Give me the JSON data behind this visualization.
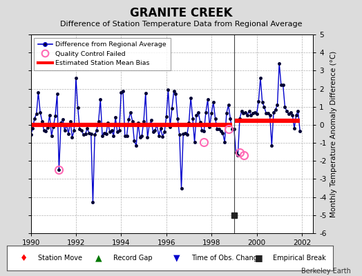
{
  "title": "GRANITE CREEK",
  "subtitle": "Difference of Station Temperature Data from Regional Average",
  "ylabel_right": "Monthly Temperature Anomaly Difference (°C)",
  "credit": "Berkeley Earth",
  "xlim": [
    1990,
    2002.5
  ],
  "ylim": [
    -6,
    5
  ],
  "yticks": [
    -6,
    -5,
    -4,
    -3,
    -2,
    -1,
    0,
    1,
    2,
    3,
    4,
    5
  ],
  "xticks": [
    1990,
    1992,
    1994,
    1996,
    1998,
    2000,
    2002
  ],
  "background_color": "#dcdcdc",
  "plot_bg_color": "#ffffff",
  "grid_color": "#b0b0b0",
  "line_color": "#0000cc",
  "line_width": 1.0,
  "marker_color": "#000033",
  "marker_size": 3.0,
  "bias_line_before": 0.0,
  "bias_line_after": 0.22,
  "break_year": 1999.0,
  "vertical_line_x": 1999.0,
  "empirical_break_x": 1999.0,
  "empirical_break_y": -5.0,
  "qc_failed_points": [
    [
      1991.25,
      -2.5
    ],
    [
      1997.67,
      -0.95
    ],
    [
      1998.75,
      -0.25
    ],
    [
      1999.25,
      -1.55
    ],
    [
      1999.42,
      -1.7
    ]
  ],
  "time_series_x": [
    1990.0,
    1990.083,
    1990.167,
    1990.25,
    1990.333,
    1990.417,
    1990.5,
    1990.583,
    1990.667,
    1990.75,
    1990.833,
    1990.917,
    1991.0,
    1991.083,
    1991.167,
    1991.25,
    1991.333,
    1991.417,
    1991.5,
    1991.583,
    1991.667,
    1991.75,
    1991.833,
    1991.917,
    1992.0,
    1992.083,
    1992.167,
    1992.25,
    1992.333,
    1992.417,
    1992.5,
    1992.583,
    1992.667,
    1992.75,
    1992.833,
    1992.917,
    1993.0,
    1993.083,
    1993.167,
    1993.25,
    1993.333,
    1993.417,
    1993.5,
    1993.583,
    1993.667,
    1993.75,
    1993.833,
    1993.917,
    1994.0,
    1994.083,
    1994.167,
    1994.25,
    1994.333,
    1994.417,
    1994.5,
    1994.583,
    1994.667,
    1994.75,
    1994.833,
    1994.917,
    1995.0,
    1995.083,
    1995.167,
    1995.25,
    1995.333,
    1995.417,
    1995.5,
    1995.583,
    1995.667,
    1995.75,
    1995.833,
    1995.917,
    1996.0,
    1996.083,
    1996.167,
    1996.25,
    1996.333,
    1996.417,
    1996.5,
    1996.583,
    1996.667,
    1996.75,
    1996.833,
    1996.917,
    1997.0,
    1997.083,
    1997.167,
    1997.25,
    1997.333,
    1997.417,
    1997.5,
    1997.583,
    1997.667,
    1997.75,
    1997.833,
    1997.917,
    1998.0,
    1998.083,
    1998.167,
    1998.25,
    1998.333,
    1998.417,
    1998.5,
    1998.583,
    1998.667,
    1998.75,
    1998.833,
    1998.917,
    1999.0,
    1999.083,
    1999.167,
    1999.25,
    1999.333,
    1999.417,
    1999.5,
    1999.583,
    1999.667,
    1999.75,
    1999.833,
    1999.917,
    2000.0,
    2000.083,
    2000.167,
    2000.25,
    2000.333,
    2000.417,
    2000.5,
    2000.583,
    2000.667,
    2000.75,
    2000.833,
    2000.917,
    2001.0,
    2001.083,
    2001.167,
    2001.25,
    2001.333,
    2001.417,
    2001.5,
    2001.583,
    2001.667,
    2001.75,
    2001.833,
    2001.917
  ],
  "time_series_y": [
    -0.55,
    -0.2,
    0.35,
    0.6,
    1.8,
    0.7,
    0.2,
    -0.3,
    -0.35,
    -0.15,
    0.55,
    -0.6,
    -0.1,
    0.5,
    1.7,
    -2.5,
    0.1,
    0.3,
    -0.3,
    0.0,
    -0.5,
    0.2,
    -0.7,
    -0.3,
    2.6,
    0.95,
    -0.25,
    -0.3,
    -0.55,
    -0.5,
    -0.2,
    -0.45,
    -0.5,
    -4.3,
    -0.55,
    -0.3,
    0.2,
    1.4,
    -0.6,
    -0.45,
    -0.5,
    0.1,
    -0.4,
    -0.3,
    -0.6,
    0.4,
    -0.4,
    -0.3,
    1.8,
    1.85,
    -0.6,
    -0.6,
    0.3,
    0.7,
    0.2,
    -0.9,
    -1.15,
    0.1,
    -0.7,
    -0.6,
    0.2,
    1.75,
    -0.7,
    0.0,
    0.25,
    -0.4,
    -0.3,
    0.0,
    -0.6,
    -0.2,
    -0.65,
    -0.4,
    0.45,
    1.95,
    -0.1,
    0.9,
    1.85,
    1.7,
    0.35,
    -0.55,
    -3.5,
    -0.5,
    -0.45,
    -0.55,
    0.1,
    1.5,
    0.35,
    -0.95,
    0.55,
    0.7,
    0.15,
    -0.3,
    -0.35,
    0.7,
    1.4,
    -0.1,
    0.65,
    1.25,
    0.35,
    -0.25,
    -0.25,
    -0.35,
    -0.45,
    -0.95,
    0.65,
    1.1,
    0.35,
    -0.25,
    -0.25,
    -1.55,
    -1.7,
    0.35,
    0.75,
    0.65,
    0.7,
    0.55,
    0.75,
    0.55,
    0.65,
    0.7,
    0.6,
    1.3,
    2.6,
    1.25,
    1.0,
    0.65,
    0.65,
    0.55,
    -1.15,
    0.7,
    0.85,
    1.1,
    3.4,
    2.2,
    2.2,
    1.0,
    0.75,
    0.6,
    0.7,
    0.55,
    -0.2,
    0.55,
    0.75,
    -0.35
  ]
}
